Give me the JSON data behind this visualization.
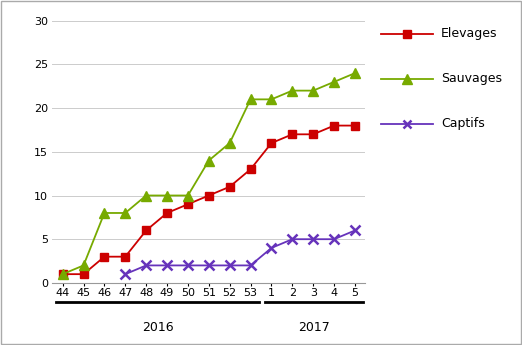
{
  "x_labels": [
    "44",
    "45",
    "46",
    "47",
    "48",
    "49",
    "50",
    "51",
    "52",
    "53",
    "1",
    "2",
    "3",
    "4",
    "5"
  ],
  "x_indices": [
    0,
    1,
    2,
    3,
    4,
    5,
    6,
    7,
    8,
    9,
    10,
    11,
    12,
    13,
    14
  ],
  "elevages": [
    1,
    1,
    3,
    3,
    6,
    8,
    9,
    10,
    11,
    13,
    16,
    17,
    17,
    18,
    18
  ],
  "sauvages": [
    1,
    2,
    8,
    8,
    10,
    10,
    10,
    14,
    16,
    21,
    21,
    22,
    22,
    23,
    24
  ],
  "captifs": [
    null,
    null,
    null,
    1,
    2,
    2,
    2,
    2,
    2,
    2,
    4,
    5,
    5,
    5,
    6
  ],
  "elevages_color": "#CC0000",
  "sauvages_color": "#77AA00",
  "captifs_color": "#6633BB",
  "ylim": [
    0,
    30
  ],
  "yticks": [
    0,
    5,
    10,
    15,
    20,
    25,
    30
  ],
  "legend_labels": [
    "Elevages",
    "Sauvages",
    "Captifs"
  ],
  "background_color": "#ffffff",
  "grid_color": "#cccccc",
  "border_color": "#aaaaaa",
  "fig_border_color": "#aaaaaa"
}
